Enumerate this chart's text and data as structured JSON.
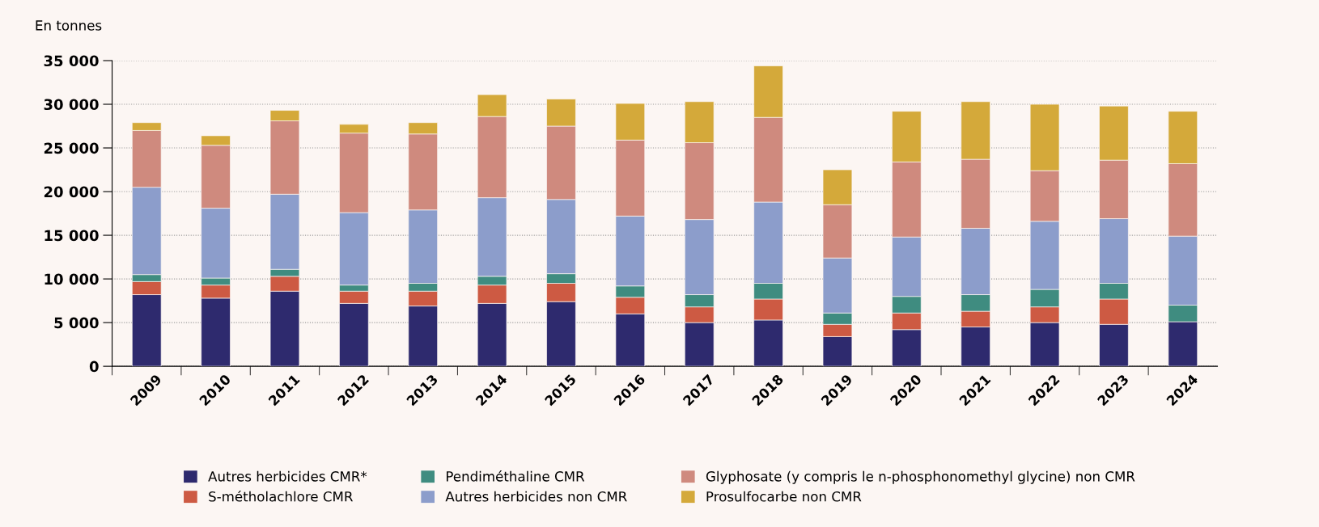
{
  "chart_data": {
    "type": "bar",
    "stacked": true,
    "ylabel": "En tonnes",
    "categories": [
      "2009",
      "2010",
      "2011",
      "2012",
      "2013",
      "2014",
      "2015",
      "2016",
      "2017",
      "2018",
      "2019",
      "2020",
      "2021",
      "2022",
      "2023",
      "2024"
    ],
    "series": [
      {
        "name": "Autres herbicides CMR*",
        "color": "#2e2a6e",
        "values": [
          8200,
          7800,
          8600,
          7200,
          6900,
          7200,
          7400,
          6000,
          5000,
          5300,
          3400,
          4200,
          4500,
          5000,
          4800,
          5100
        ]
      },
      {
        "name": "S-métholachlore CMR",
        "color": "#cd5a43",
        "values": [
          1500,
          1500,
          1700,
          1400,
          1700,
          2100,
          2100,
          1900,
          1800,
          2400,
          1400,
          1900,
          1800,
          1800,
          2900,
          0
        ]
      },
      {
        "name": "Pendiméthaline CMR",
        "color": "#3f8c80",
        "values": [
          800,
          800,
          800,
          700,
          900,
          1000,
          1100,
          1300,
          1400,
          1800,
          1300,
          1900,
          1900,
          2000,
          1800,
          1900
        ]
      },
      {
        "name": "Autres herbicides non CMR",
        "color": "#8c9dcb",
        "values": [
          10000,
          8000,
          8600,
          8300,
          8400,
          9000,
          8500,
          8000,
          8600,
          9300,
          6300,
          6800,
          7600,
          7800,
          7400,
          7900
        ]
      },
      {
        "name": "Glyphosate (y compris le n-phosphonomethyl glycine) non CMR",
        "color": "#cf8a7e",
        "values": [
          6500,
          7200,
          8400,
          9100,
          8700,
          9300,
          8400,
          8700,
          8800,
          9700,
          6100,
          8600,
          7900,
          5800,
          6700,
          8300
        ]
      },
      {
        "name": "Prosulfocarbe non CMR",
        "color": "#d4a93a",
        "values": [
          900,
          1100,
          1200,
          1000,
          1300,
          2500,
          3100,
          4200,
          4700,
          5900,
          4000,
          5800,
          6600,
          7600,
          6200,
          6000
        ]
      }
    ],
    "ylim": [
      0,
      35000
    ],
    "yticks": [
      0,
      {
        "value": 5000,
        "label": "5 000"
      },
      {
        "value": 10000,
        "label": "10 000"
      },
      {
        "value": 15000,
        "label": "15 000"
      },
      {
        "value": 20000,
        "label": "20 000"
      },
      {
        "value": 25000,
        "label": "25 000"
      },
      {
        "value": 30000,
        "label": "30 000"
      },
      {
        "value": 35000,
        "label": "35 000"
      }
    ],
    "grid": "y",
    "legend": "bottom"
  }
}
